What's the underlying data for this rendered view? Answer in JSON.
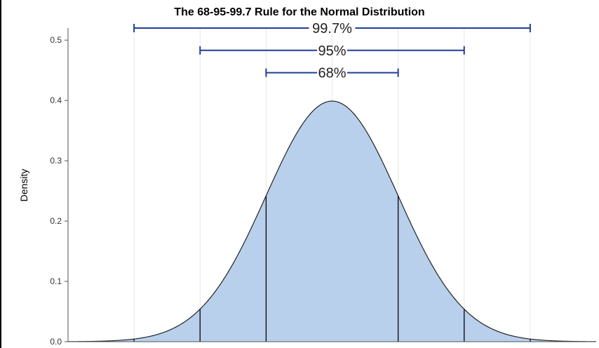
{
  "chart_data": {
    "type": "area",
    "title": "The 68-95-99.7 Rule for the Normal Distribution",
    "xlabel": "",
    "ylabel": "Density",
    "xlim": [
      -4.0,
      4.0
    ],
    "ylim": [
      0.0,
      0.52
    ],
    "yticks": [
      "0.0",
      "0.1",
      "0.2",
      "0.3",
      "0.4",
      "0.5"
    ],
    "grid_x": [
      -3,
      -2,
      -1,
      0,
      1,
      2,
      3
    ],
    "curve": {
      "distribution": "normal",
      "mean": 0,
      "sd": 1,
      "peak_density": 0.4
    },
    "boundaries": [
      -3,
      -2,
      -1,
      1,
      2,
      3
    ],
    "brackets": [
      {
        "label": "99.7%",
        "from": -3,
        "to": 3,
        "y": 0.52
      },
      {
        "label": "95%",
        "from": -2,
        "to": 2,
        "y": 0.483
      },
      {
        "label": "68%",
        "from": -1,
        "to": 1,
        "y": 0.446
      }
    ],
    "colors": {
      "fill": "#b9d0ec",
      "curve": "#222222",
      "bracket": "#1f3d99",
      "grid": "#e6e6e6"
    }
  }
}
